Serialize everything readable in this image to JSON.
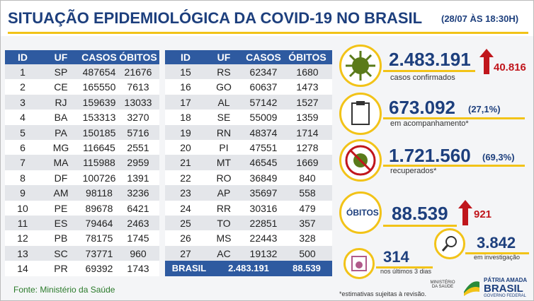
{
  "header": {
    "title": "SITUAÇÃO EPIDEMIOLÓGICA DA COVID-19 NO BRASIL",
    "date": "(28/07 ÀS 18:30H)"
  },
  "table": {
    "columns": [
      "ID",
      "UF",
      "CASOS",
      "ÓBITOS"
    ],
    "left_rows": [
      [
        1,
        "SP",
        487654,
        21676
      ],
      [
        2,
        "CE",
        165550,
        7613
      ],
      [
        3,
        "RJ",
        159639,
        13033
      ],
      [
        4,
        "BA",
        153313,
        3270
      ],
      [
        5,
        "PA",
        150185,
        5716
      ],
      [
        6,
        "MG",
        116645,
        2551
      ],
      [
        7,
        "MA",
        115988,
        2959
      ],
      [
        8,
        "DF",
        100726,
        1391
      ],
      [
        9,
        "AM",
        98118,
        3236
      ],
      [
        10,
        "PE",
        89678,
        6421
      ],
      [
        11,
        "ES",
        79464,
        2463
      ],
      [
        12,
        "PB",
        78175,
        1745
      ],
      [
        13,
        "SC",
        73771,
        960
      ],
      [
        14,
        "PR",
        69392,
        1743
      ]
    ],
    "right_rows": [
      [
        15,
        "RS",
        62347,
        1680
      ],
      [
        16,
        "GO",
        60637,
        1473
      ],
      [
        17,
        "AL",
        57142,
        1527
      ],
      [
        18,
        "SE",
        55009,
        1359
      ],
      [
        19,
        "RN",
        48374,
        1714
      ],
      [
        20,
        "PI",
        47551,
        1278
      ],
      [
        21,
        "MT",
        46545,
        1669
      ],
      [
        22,
        "RO",
        36849,
        840
      ],
      [
        23,
        "AP",
        35697,
        558
      ],
      [
        24,
        "RR",
        30316,
        479
      ],
      [
        25,
        "TO",
        22851,
        357
      ],
      [
        26,
        "MS",
        22443,
        328
      ],
      [
        27,
        "AC",
        19132,
        500
      ]
    ],
    "total": [
      "BRASIL",
      "2.483.191",
      "88.539"
    ]
  },
  "stats": {
    "confirmed": {
      "value": "2.483.191",
      "label": "casos confirmados",
      "increase": "40.816"
    },
    "monitoring": {
      "value": "673.092",
      "percent": "(27,1%)",
      "label": "em acompanhamento*"
    },
    "recovered": {
      "value": "1.721.560",
      "percent": "(69,3%)",
      "label": "recuperados*"
    },
    "deaths": {
      "title": "ÓBITOS",
      "value": "88.539",
      "increase": "921"
    },
    "investigation": {
      "value": "3.842",
      "label": "em investigação"
    },
    "recent": {
      "value": "314",
      "label": "nos últimos 3 dias"
    }
  },
  "footer": {
    "source": "Fonte: Ministério da Saúde",
    "note": "*estimativas sujeitas à revisão.",
    "ministry": "MINISTÉRIO DA SAÚDE",
    "motto": "PÁTRIA AMADA",
    "country": "BRASIL",
    "government": "GOVERNO FEDERAL"
  }
}
